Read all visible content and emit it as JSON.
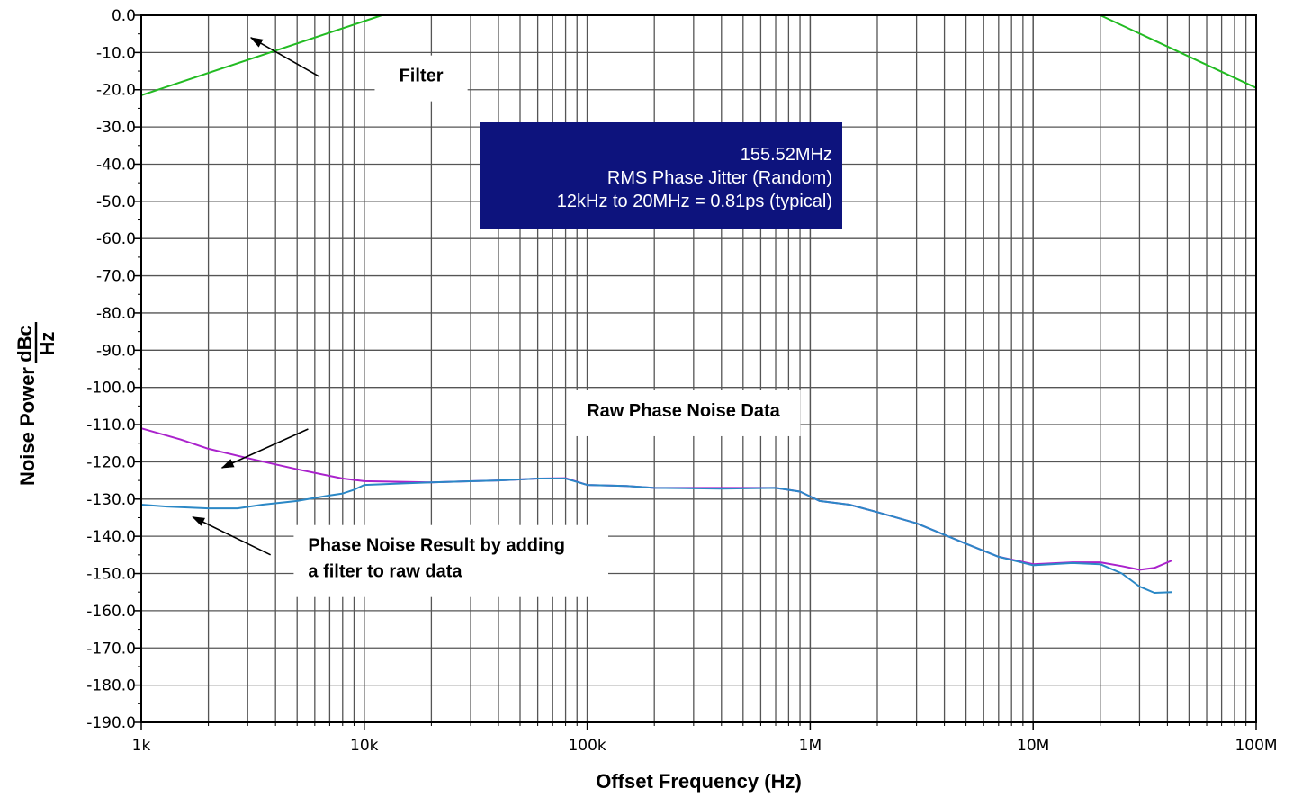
{
  "chart_data": {
    "type": "line",
    "xlabel": "Offset Frequency (Hz)",
    "ylabel_prefix": "Noise Power",
    "ylabel_unit_num": "dBc",
    "ylabel_unit_den": "Hz",
    "x_scale": "log",
    "xlim": [
      1000,
      100000000
    ],
    "ylim": [
      -190,
      0
    ],
    "grid": true,
    "x_ticks": [
      {
        "value": 1000,
        "label": "1k"
      },
      {
        "value": 10000,
        "label": "10k"
      },
      {
        "value": 100000,
        "label": "100k"
      },
      {
        "value": 1000000,
        "label": "1M"
      },
      {
        "value": 10000000,
        "label": "10M"
      },
      {
        "value": 100000000,
        "label": "100M"
      }
    ],
    "y_ticks": [
      {
        "value": 0,
        "label": "0.0"
      },
      {
        "value": -10,
        "label": "-10.0"
      },
      {
        "value": -20,
        "label": "-20.0"
      },
      {
        "value": -30,
        "label": "-30.0"
      },
      {
        "value": -40,
        "label": "-40.0"
      },
      {
        "value": -50,
        "label": "-50.0"
      },
      {
        "value": -60,
        "label": "-60.0"
      },
      {
        "value": -70,
        "label": "-70.0"
      },
      {
        "value": -80,
        "label": "-80.0"
      },
      {
        "value": -90,
        "label": "-90.0"
      },
      {
        "value": -100,
        "label": "-100.0"
      },
      {
        "value": -110,
        "label": "-110.0"
      },
      {
        "value": -120,
        "label": "-120.0"
      },
      {
        "value": -130,
        "label": "-130.0"
      },
      {
        "value": -140,
        "label": "-140.0"
      },
      {
        "value": -150,
        "label": "-150.0"
      },
      {
        "value": -160,
        "label": "-160.0"
      },
      {
        "value": -170,
        "label": "-170.0"
      },
      {
        "value": -180,
        "label": "-180.0"
      },
      {
        "value": -190,
        "label": "-190.0"
      }
    ],
    "series": [
      {
        "color": "#22bb22",
        "points": [
          [
            1000,
            -21.5
          ],
          [
            12000,
            0
          ],
          [
            20000000,
            0
          ],
          [
            100000000,
            -19.5
          ]
        ]
      },
      {
        "color": "#aa22cc",
        "points": [
          [
            1000,
            -111
          ],
          [
            1500,
            -114
          ],
          [
            2000,
            -116.5
          ],
          [
            3000,
            -119
          ],
          [
            5000,
            -122
          ],
          [
            8000,
            -124.5
          ],
          [
            10000,
            -125.2
          ],
          [
            20000,
            -125.5
          ],
          [
            40000,
            -125
          ],
          [
            60000,
            -124.5
          ],
          [
            80000,
            -124.4
          ],
          [
            100000,
            -126.2
          ],
          [
            150000,
            -126.5
          ],
          [
            200000,
            -127
          ],
          [
            400000,
            -127
          ],
          [
            700000,
            -127
          ],
          [
            900000,
            -128
          ],
          [
            1100000,
            -130.5
          ],
          [
            1500000,
            -131.5
          ],
          [
            2000000,
            -133.5
          ],
          [
            3000000,
            -136.5
          ],
          [
            5000000,
            -142
          ],
          [
            7000000,
            -145.5
          ],
          [
            10000000,
            -147.5
          ],
          [
            15000000,
            -147
          ],
          [
            20000000,
            -147
          ],
          [
            25000000,
            -148
          ],
          [
            30000000,
            -149
          ],
          [
            35000000,
            -148.5
          ],
          [
            42000000,
            -146.5
          ]
        ]
      },
      {
        "color": "#2b88c6",
        "points": [
          [
            1000,
            -131.5
          ],
          [
            1300,
            -132
          ],
          [
            2000,
            -132.5
          ],
          [
            2700,
            -132.5
          ],
          [
            3500,
            -131.5
          ],
          [
            5000,
            -130.5
          ],
          [
            7000,
            -129
          ],
          [
            8000,
            -128.5
          ],
          [
            9000,
            -127.5
          ],
          [
            10000,
            -126.2
          ],
          [
            15000,
            -125.8
          ],
          [
            20000,
            -125.5
          ],
          [
            40000,
            -125
          ],
          [
            60000,
            -124.5
          ],
          [
            80000,
            -124.5
          ],
          [
            100000,
            -126.2
          ],
          [
            150000,
            -126.5
          ],
          [
            200000,
            -127
          ],
          [
            400000,
            -127.2
          ],
          [
            700000,
            -127
          ],
          [
            900000,
            -128
          ],
          [
            1100000,
            -130.5
          ],
          [
            1500000,
            -131.5
          ],
          [
            2000000,
            -133.5
          ],
          [
            3000000,
            -136.5
          ],
          [
            5000000,
            -142
          ],
          [
            7000000,
            -145.5
          ],
          [
            10000000,
            -147.8
          ],
          [
            15000000,
            -147.2
          ],
          [
            20000000,
            -147.5
          ],
          [
            25000000,
            -150
          ],
          [
            30000000,
            -153.5
          ],
          [
            35000000,
            -155.2
          ],
          [
            42000000,
            -155
          ]
        ]
      }
    ],
    "annotations": [
      {
        "lines": [
          "Filter"
        ],
        "x": 18000,
        "y": -17.8,
        "anchor": "middle",
        "arrow_from": [
          6300,
          -16.5
        ],
        "arrow_to": [
          3100,
          -6
        ]
      },
      {
        "lines": [
          "Raw Phase Noise Data"
        ],
        "x": 270000,
        "y": -107.8,
        "anchor": "middle",
        "arrow_from": [
          5600,
          -111.2
        ],
        "arrow_to": [
          2300,
          -121.6
        ]
      },
      {
        "lines": [
          "Phase Noise Result by adding",
          "a filter to raw data"
        ],
        "x": 5600,
        "y": -144,
        "anchor": "start",
        "arrow_from": [
          3800,
          -145
        ],
        "arrow_to": [
          1700,
          -134.8
        ]
      }
    ],
    "info_box": {
      "fill": "#0d137d",
      "lines": [
        "155.52MHz",
        "RMS Phase Jitter (Random)",
        "12kHz to 20MHz = 0.81ps (typical)"
      ]
    }
  }
}
